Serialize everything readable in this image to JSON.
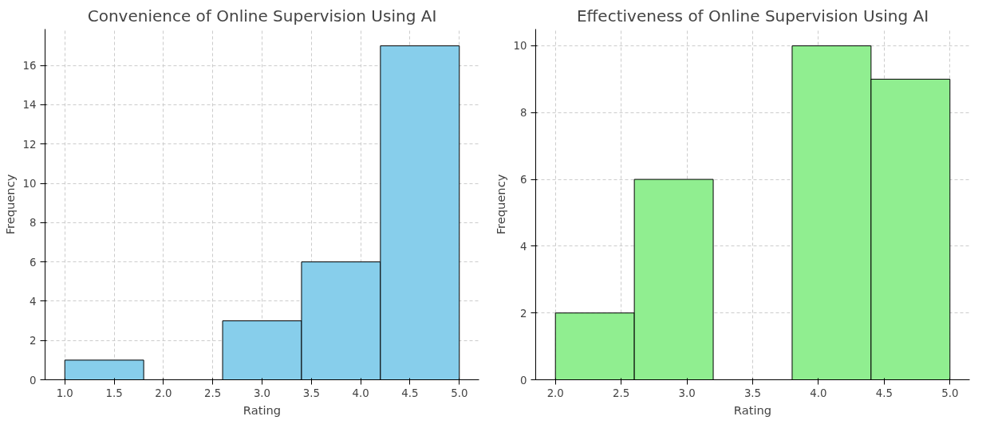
{
  "chart_data": [
    {
      "type": "histogram",
      "title": "Convenience of Online Supervision Using AI",
      "xlabel": "Rating",
      "ylabel": "Frequency",
      "bins": [
        1.0,
        1.8,
        2.6,
        3.4,
        4.2,
        5.0
      ],
      "values": [
        1,
        0,
        3,
        6,
        17
      ],
      "color": "#87ceeb",
      "xlim": [
        0.8,
        5.2
      ],
      "ylim": [
        0,
        17.85
      ],
      "xticks": [
        {
          "value": 1,
          "label": "1.0"
        },
        {
          "value": 1.5,
          "label": "1.5"
        },
        {
          "value": 2,
          "label": "2.0"
        },
        {
          "value": 2.5,
          "label": "2.5"
        },
        {
          "value": 3,
          "label": "3.0"
        },
        {
          "value": 3.5,
          "label": "3.5"
        },
        {
          "value": 4,
          "label": "4.0"
        },
        {
          "value": 4.5,
          "label": "4.5"
        },
        {
          "value": 5,
          "label": "5.0"
        }
      ],
      "yticks": [
        0,
        2,
        4,
        6,
        8,
        10,
        12,
        14,
        16
      ],
      "grid": true
    },
    {
      "type": "histogram",
      "title": "Effectiveness of Online Supervision Using AI",
      "xlabel": "Rating",
      "ylabel": "Frequency",
      "bins": [
        2.0,
        2.6,
        3.2,
        3.8,
        4.4,
        5.0
      ],
      "values": [
        2,
        6,
        0,
        10,
        9
      ],
      "color": "#90ee90",
      "xlim": [
        1.85,
        5.15
      ],
      "ylim": [
        0,
        10.5
      ],
      "xticks": [
        {
          "value": 2,
          "label": "2.0"
        },
        {
          "value": 2.5,
          "label": "2.5"
        },
        {
          "value": 3,
          "label": "3.0"
        },
        {
          "value": 3.5,
          "label": "3.5"
        },
        {
          "value": 4,
          "label": "4.0"
        },
        {
          "value": 4.5,
          "label": "4.5"
        },
        {
          "value": 5,
          "label": "5.0"
        }
      ],
      "yticks": [
        0,
        2,
        4,
        6,
        8,
        10
      ],
      "grid": true
    }
  ]
}
